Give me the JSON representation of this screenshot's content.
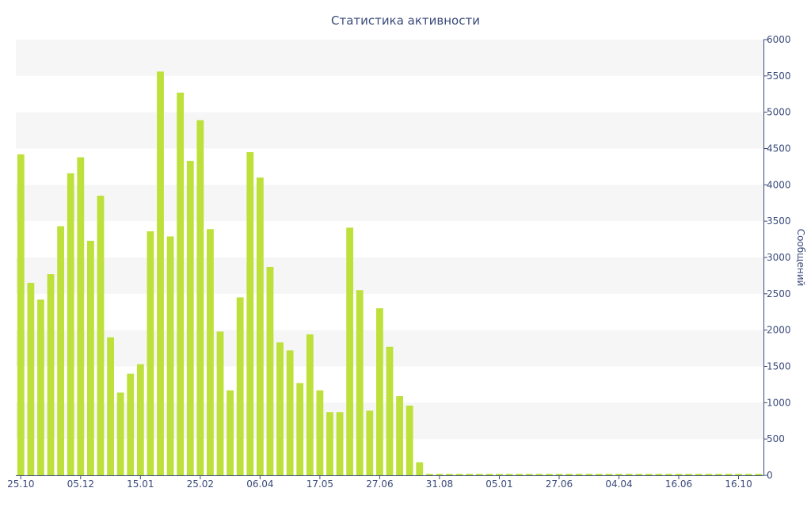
{
  "chart_data": {
    "type": "bar",
    "title": "Статистика активности",
    "ylabel": "Сообщений",
    "xlabel": "",
    "ylim": [
      0,
      6000
    ],
    "y_ticks": [
      0,
      500,
      1000,
      1500,
      2000,
      2500,
      3000,
      3500,
      4000,
      4500,
      5000,
      5500,
      6000
    ],
    "x_tick_labels": [
      {
        "label": "25.10",
        "index": 0
      },
      {
        "label": "05.12",
        "index": 6
      },
      {
        "label": "15.01",
        "index": 12
      },
      {
        "label": "25.02",
        "index": 18
      },
      {
        "label": "06.04",
        "index": 24
      },
      {
        "label": "17.05",
        "index": 30
      },
      {
        "label": "27.06",
        "index": 36
      },
      {
        "label": "31.08",
        "index": 42
      },
      {
        "label": "05.01",
        "index": 48
      },
      {
        "label": "27.06",
        "index": 54
      },
      {
        "label": "04.04",
        "index": 60
      },
      {
        "label": "16.06",
        "index": 66
      },
      {
        "label": "16.10",
        "index": 72
      }
    ],
    "bar_color": "#bde03a",
    "grid_band_color": "#f6f6f6",
    "axis_color": "#3a4a7a",
    "series": [
      {
        "values": [
          4420,
          2650,
          2420,
          2770,
          3430,
          4160,
          4380,
          3230,
          3850,
          1900,
          1140,
          1400,
          1530,
          3360,
          5560,
          3290,
          5270,
          4330,
          4890,
          3390,
          1980,
          1170,
          2450,
          4450,
          4100,
          2870,
          1830,
          1720,
          1270,
          1940,
          1170,
          870,
          870,
          3410,
          2550,
          890,
          2300,
          1770,
          1090,
          960,
          180,
          20,
          20,
          20,
          20,
          20,
          20,
          20,
          20,
          20,
          20,
          20,
          20,
          20,
          20,
          20,
          20,
          20,
          20,
          20,
          20,
          20,
          20,
          20,
          20,
          20,
          20,
          20,
          20,
          20,
          20,
          20,
          20,
          20,
          20
        ]
      }
    ]
  }
}
